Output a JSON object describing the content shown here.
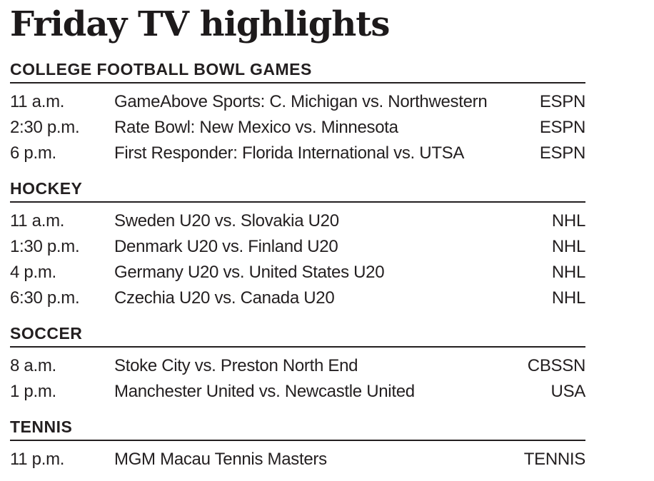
{
  "page": {
    "title": "Friday TV highlights",
    "text_color": "#231f20",
    "background": "#ffffff"
  },
  "sections": [
    {
      "heading": "COLLEGE FOOTBALL BOWL GAMES",
      "rows": [
        {
          "time": "11 a.m.",
          "event": "GameAbove Sports: C. Michigan vs. Northwestern",
          "channel": "ESPN"
        },
        {
          "time": "2:30 p.m.",
          "event": "Rate Bowl: New Mexico vs. Minnesota",
          "channel": "ESPN"
        },
        {
          "time": "6 p.m.",
          "event": "First Responder: Florida International vs. UTSA",
          "channel": "ESPN"
        }
      ]
    },
    {
      "heading": "HOCKEY",
      "rows": [
        {
          "time": "11 a.m.",
          "event": "Sweden U20 vs. Slovakia U20",
          "channel": "NHL"
        },
        {
          "time": "1:30 p.m.",
          "event": "Denmark U20 vs. Finland U20",
          "channel": "NHL"
        },
        {
          "time": "4 p.m.",
          "event": "Germany U20 vs. United States U20",
          "channel": "NHL"
        },
        {
          "time": "6:30 p.m.",
          "event": "Czechia U20 vs. Canada U20",
          "channel": "NHL"
        }
      ]
    },
    {
      "heading": "SOCCER",
      "rows": [
        {
          "time": "8 a.m.",
          "event": "Stoke City vs. Preston North End",
          "channel": "CBSSN"
        },
        {
          "time": "1 p.m.",
          "event": "Manchester United vs. Newcastle United",
          "channel": "USA"
        }
      ]
    },
    {
      "heading": "TENNIS",
      "rows": [
        {
          "time": "11 p.m.",
          "event": "MGM Macau Tennis Masters",
          "channel": "TENNIS"
        }
      ]
    }
  ]
}
